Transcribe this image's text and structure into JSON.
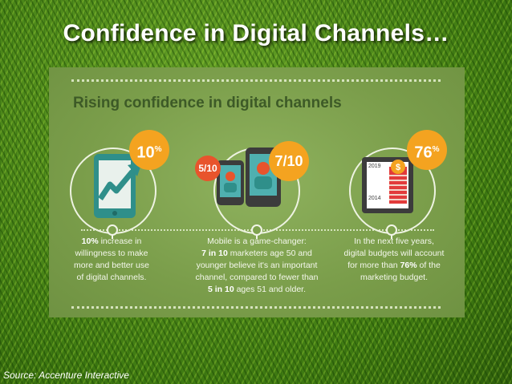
{
  "slide": {
    "title": "Confidence in Digital Channels…",
    "source": "Source: Accenture Interactive"
  },
  "infographic": {
    "heading": "Rising confidence in digital channels",
    "colors": {
      "panel": "#7ea24e",
      "accent_orange": "#f4a320",
      "accent_red": "#e8542c",
      "teal": "#2f8f8a",
      "heading": "#3d5a27"
    },
    "items": [
      {
        "badge": "10",
        "badge_suffix": "%",
        "icon": "tablet-growth-arrow-icon",
        "caption": {
          "bold": "10%",
          "line1_rest": " increase in",
          "line2": "willingness to make",
          "line3": "more and better use",
          "line4": "of digital channels."
        }
      },
      {
        "badge_small": "5/10",
        "badge": "7/10",
        "icon": "mobile-phones-icon",
        "caption": {
          "line1": "Mobile is a game-changer:",
          "bold_a": "7 in 10",
          "line2_rest": " marketers age 50 and",
          "line3": "younger believe it's an important",
          "line4": "channel, compared to fewer than",
          "bold_b": "5 in 10",
          "line5_rest": " ages 51 and older."
        }
      },
      {
        "badge": "76",
        "badge_suffix": "%",
        "icon": "budget-coins-icon",
        "year_top": "2019",
        "year_bottom": "2014",
        "caption": {
          "line1": "In the next five years,",
          "line2": "digital budgets will account",
          "line3_pre": "for more than ",
          "bold": "76%",
          "line3_rest": " of the",
          "line4": "marketing budget."
        }
      }
    ]
  }
}
